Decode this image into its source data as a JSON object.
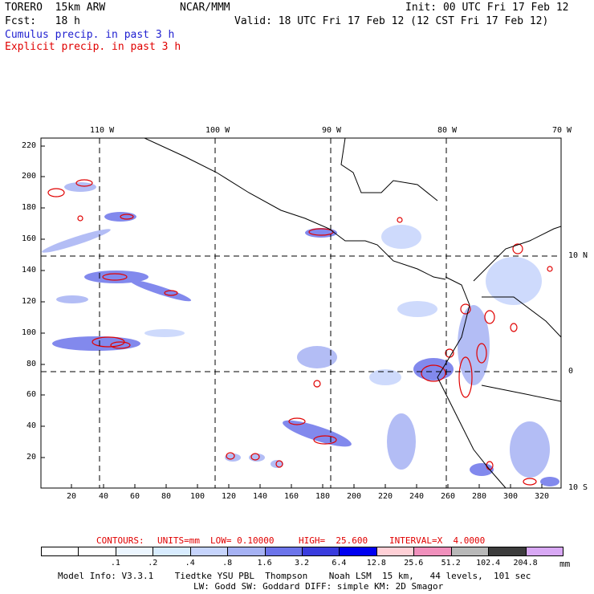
{
  "header": {
    "model": "TORERO  15km ARW",
    "center": "NCAR/MMM",
    "init": "Init: 00 UTC Fri 17 Feb 12",
    "fcst": "Fcst:   18 h",
    "valid": "Valid: 18 UTC Fri 17 Feb 12 (12 CST Fri 17 Feb 12)",
    "field1": "Cumulus precip. in past 3 h",
    "field2": "Explicit precip. in past 3 h"
  },
  "axes": {
    "top_lon_labels": [
      "110 W",
      "100 W",
      "90 W",
      "80 W",
      "70 W"
    ],
    "right_lat_labels": [
      "10 N",
      "0",
      "10 S"
    ],
    "y_ticks": [
      "220",
      "200",
      "180",
      "160",
      "140",
      "120",
      "100",
      "80",
      "60",
      "40",
      "20"
    ],
    "x_ticks": [
      "20",
      "40",
      "60",
      "80",
      "100",
      "120",
      "140",
      "160",
      "180",
      "200",
      "220",
      "240",
      "260",
      "280",
      "300",
      "320"
    ]
  },
  "contours": {
    "label": "CONTOURS:",
    "units": "UNITS=mm",
    "low": "LOW= 0.10000",
    "high": "HIGH=  25.600",
    "interval": "INTERVAL=X  4.0000"
  },
  "colorbar": {
    "labels": [
      ".1",
      ".2",
      ".4",
      ".8",
      "1.6",
      "3.2",
      "6.4",
      "12.8",
      "25.6",
      "51.2",
      "102.4",
      "204.8"
    ],
    "unit": "mm",
    "colors": [
      "#ffffff",
      "#ffffff",
      "#ecf6ff",
      "#d8ecff",
      "#c6d4fc",
      "#a6b2f4",
      "#6c74ea",
      "#3a3cde",
      "#0000f0",
      "#ffd0d6",
      "#f090bc",
      "#b8b8b8",
      "#3c3c3c",
      "#d8a8f4"
    ]
  },
  "footer": {
    "line1": "Model Info: V3.3.1    Tiedtke YSU PBL  Thompson    Noah LSM  15 km,   44 levels,  101 sec",
    "line2": "LW: Godd SW: Goddard DIFF: simple KM: 2D Smagor"
  }
}
